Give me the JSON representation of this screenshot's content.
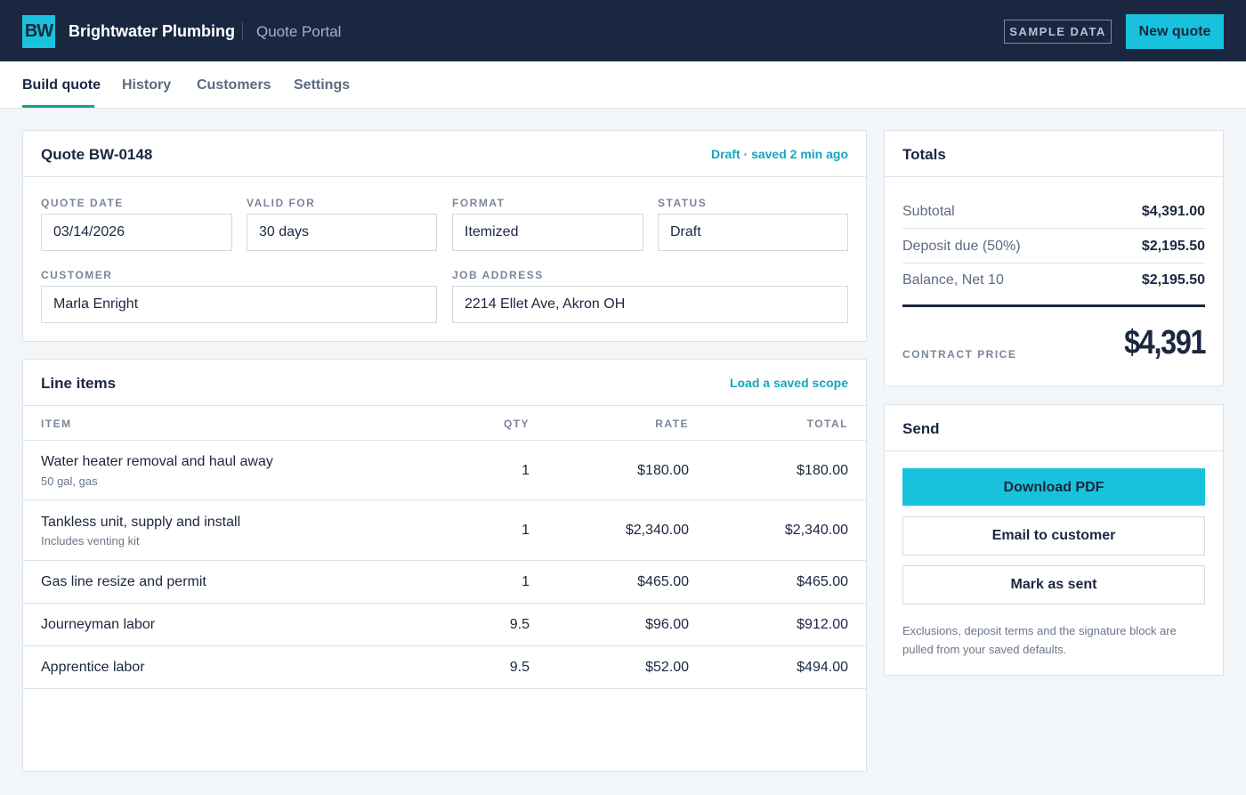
{
  "header": {
    "logo_text": "BW",
    "brand": "Brightwater Plumbing",
    "portal": "Quote Portal",
    "sample_badge": "SAMPLE DATA",
    "new_quote": "New quote"
  },
  "tabs": [
    {
      "label": "Build quote",
      "active": true
    },
    {
      "label": "History",
      "active": false
    },
    {
      "label": "Customers",
      "active": false
    },
    {
      "label": "Settings",
      "active": false
    }
  ],
  "quote": {
    "title": "Quote BW-0148",
    "status_note": "Draft · saved 2 min ago",
    "fields": {
      "quote_date": {
        "label": "QUOTE DATE",
        "value": "03/14/2026"
      },
      "valid_for": {
        "label": "VALID FOR",
        "value": "30 days"
      },
      "format": {
        "label": "FORMAT",
        "value": "Itemized"
      },
      "status": {
        "label": "STATUS",
        "value": "Draft"
      },
      "customer": {
        "label": "CUSTOMER",
        "value": "Marla Enright"
      },
      "job_address": {
        "label": "JOB ADDRESS",
        "value": "2214 Ellet Ave, Akron OH"
      }
    }
  },
  "line_items": {
    "title": "Line items",
    "load_link": "Load a saved scope",
    "columns": {
      "item": "ITEM",
      "qty": "QTY",
      "rate": "RATE",
      "total": "TOTAL"
    },
    "rows": [
      {
        "item": "Water heater removal and haul away",
        "note": "50 gal, gas",
        "qty": "1",
        "rate": "$180.00",
        "total": "$180.00"
      },
      {
        "item": "Tankless unit, supply and install",
        "note": "Includes venting kit",
        "qty": "1",
        "rate": "$2,340.00",
        "total": "$2,340.00"
      },
      {
        "item": "Gas line resize and permit",
        "note": "",
        "qty": "1",
        "rate": "$465.00",
        "total": "$465.00"
      },
      {
        "item": "Journeyman labor",
        "note": "",
        "qty": "9.5",
        "rate": "$96.00",
        "total": "$912.00"
      },
      {
        "item": "Apprentice labor",
        "note": "",
        "qty": "9.5",
        "rate": "$52.00",
        "total": "$494.00"
      }
    ]
  },
  "totals": {
    "title": "Totals",
    "subtotal_label": "Subtotal",
    "subtotal": "$4,391.00",
    "deposit_label": "Deposit due (50%)",
    "deposit": "$2,195.50",
    "balance_label": "Balance, Net 10",
    "balance": "$2,195.50",
    "contract_label": "CONTRACT PRICE",
    "contract_price": "$4,391"
  },
  "send": {
    "title": "Send",
    "download": "Download PDF",
    "email": "Email to customer",
    "mark_sent": "Mark as sent",
    "note": "Exclusions, deposit terms and the signature block are pulled from your saved defaults."
  },
  "colors": {
    "navy": "#1b2740",
    "accent": "#18c2dc",
    "tab_underline": "#12a783",
    "link": "#13a6bf"
  }
}
